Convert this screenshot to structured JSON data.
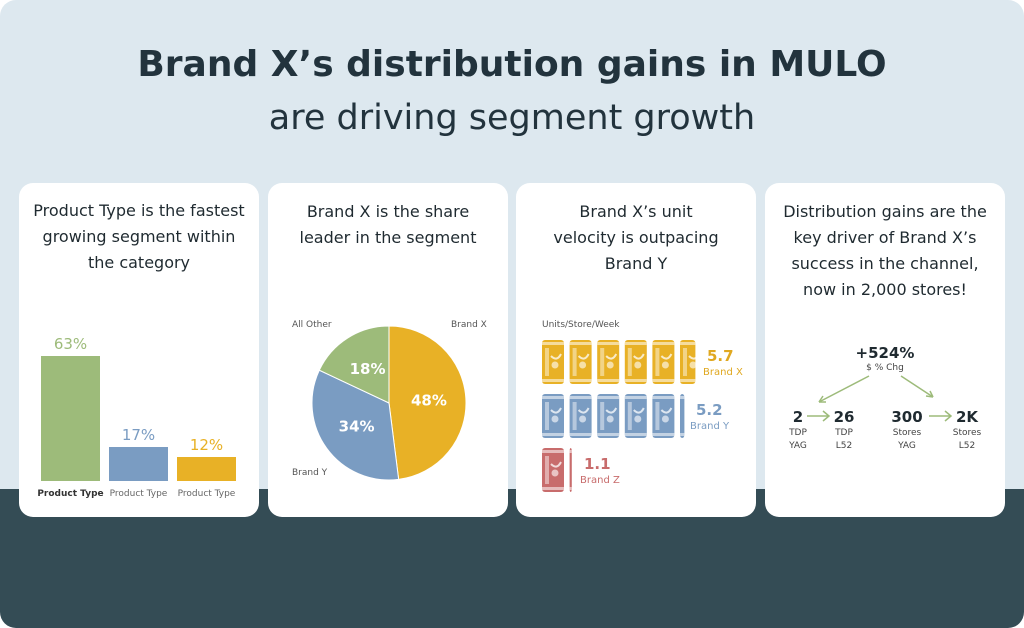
{
  "title": {
    "bold": "Brand X’s distribution gains in MULO",
    "regular": "are driving segment growth"
  },
  "colors": {
    "green": "#9dbb7a",
    "blue": "#7a9cc2",
    "gold": "#e8b126",
    "red": "#c86c6c",
    "dark": "#344c55",
    "light": "#dde8ef"
  },
  "cards": [
    {
      "heading": "Product Type is the fastest growing segment within the category"
    },
    {
      "heading": "Brand X is the share leader in the segment"
    },
    {
      "heading": "Brand X’s unit velocity is outpacing Brand Y"
    },
    {
      "heading": "Distribution gains are the key driver of Brand X’s success in the channel, now in 2,000 stores!"
    }
  ],
  "chart_data": [
    {
      "type": "bar",
      "categories": [
        "Product Type",
        "Product Type",
        "Product Type"
      ],
      "values": [
        63,
        17,
        12
      ],
      "value_labels": [
        "63%",
        "17%",
        "12%"
      ],
      "ylim": [
        0,
        63
      ]
    },
    {
      "type": "pie",
      "slices": [
        {
          "label": "Brand X",
          "value": 48,
          "value_label": "48%"
        },
        {
          "label": "Brand Y",
          "value": 34,
          "value_label": "34%"
        },
        {
          "label": "All Other",
          "value": 18,
          "value_label": "18%"
        }
      ]
    },
    {
      "type": "bar",
      "ylabel": "Units/Store/Week",
      "series": [
        {
          "name": "Brand X",
          "value": 5.7,
          "value_label": "5.7"
        },
        {
          "name": "Brand Y",
          "value": 5.2,
          "value_label": "5.2"
        },
        {
          "name": "Brand Z",
          "value": 1.1,
          "value_label": "1.1"
        }
      ]
    }
  ],
  "distribution": {
    "change": "+524%",
    "change_label": "$ % Chg",
    "pairs": [
      {
        "from_value": "2",
        "from_l1": "TDP",
        "from_l2": "YAG",
        "to_value": "26",
        "to_l1": "TDP",
        "to_l2": "L52"
      },
      {
        "from_value": "300",
        "from_l1": "Stores",
        "from_l2": "YAG",
        "to_value": "2K",
        "to_l1": "Stores",
        "to_l2": "L52"
      }
    ]
  }
}
